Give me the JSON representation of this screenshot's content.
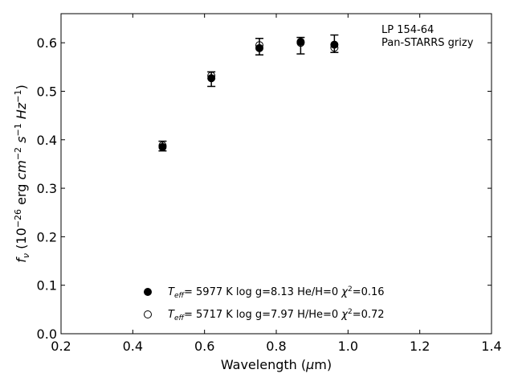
{
  "chart_data": {
    "type": "scatter",
    "annotation": [
      "LP 154-64",
      "Pan-STARRS grizy"
    ],
    "xlabel": "Wavelength (μm)",
    "ylabel": "fν (10⁻²⁶ erg cm⁻² s⁻¹ Hz⁻¹)",
    "xlim": [
      0.2,
      1.4
    ],
    "ylim": [
      0.0,
      0.66
    ],
    "xticks": [
      "0.2",
      "0.4",
      "0.6",
      "0.8",
      "1.0",
      "1.2",
      "1.4"
    ],
    "yticks": [
      "0.0",
      "0.1",
      "0.2",
      "0.3",
      "0.4",
      "0.5",
      "0.6"
    ],
    "grid": false,
    "legend_placement": "lower-center",
    "observed": {
      "x": [
        0.483,
        0.619,
        0.753,
        0.868,
        0.962
      ],
      "y": [
        0.387,
        0.525,
        0.592,
        0.594,
        0.598
      ],
      "err": [
        0.01,
        0.015,
        0.017,
        0.017,
        0.018
      ]
    },
    "series": [
      {
        "name": "Teff= 5977 K log g=8.13 He/H=0 χ²=0.16",
        "marker": "filled-circle",
        "x": [
          0.483,
          0.619,
          0.753,
          0.868,
          0.962
        ],
        "y": [
          0.385,
          0.527,
          0.589,
          0.602,
          0.596
        ]
      },
      {
        "name": "Teff= 5717 K log g=7.97 H/He=0 χ²=0.72",
        "marker": "open-circle",
        "x": [
          0.483,
          0.619,
          0.753,
          0.868,
          0.962
        ],
        "y": [
          0.388,
          0.532,
          0.595,
          0.6,
          0.59
        ]
      }
    ],
    "legend": [
      {
        "teff_label": "Teff",
        "teff_prefix": "T",
        "teff_sub": "eff",
        "rest": "=  5977 K  log g=8.13  He/H=0  χ",
        "sup": "2",
        "tail": "=0.16"
      },
      {
        "teff_label": "Teff",
        "teff_prefix": "T",
        "teff_sub": "eff",
        "rest": "=  5717 K  log g=7.97  H/He=0  χ",
        "sup": "2",
        "tail": "=0.72"
      }
    ],
    "colors": {
      "marker": "#000000",
      "axes": "#000000",
      "background": "#ffffff"
    }
  }
}
